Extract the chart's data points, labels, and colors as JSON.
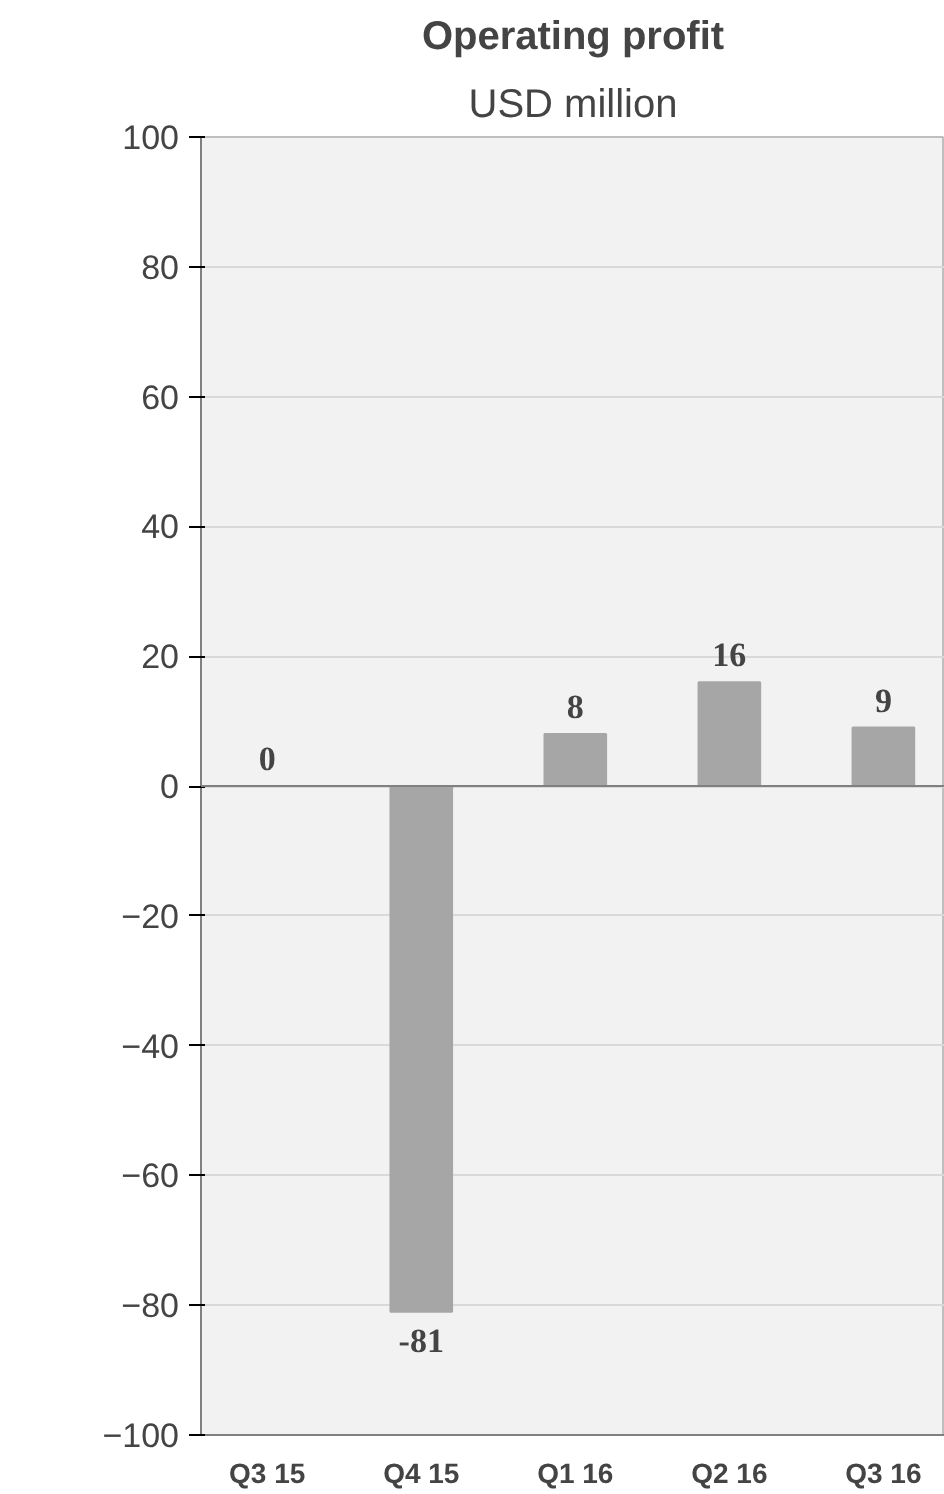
{
  "chart_data": {
    "type": "bar",
    "title": "Operating profit",
    "subtitle": "USD million",
    "categories": [
      "Q3 15",
      "Q4 15",
      "Q1 16",
      "Q2 16",
      "Q3 16"
    ],
    "values": [
      0,
      -81,
      8,
      16,
      9
    ],
    "color": "#a6a6a6",
    "ylim": [
      -100,
      100
    ],
    "yticks": [
      -100,
      -80,
      -60,
      -40,
      -20,
      0,
      20,
      40,
      60,
      80,
      100
    ],
    "grid": "y",
    "data_labels": true
  }
}
